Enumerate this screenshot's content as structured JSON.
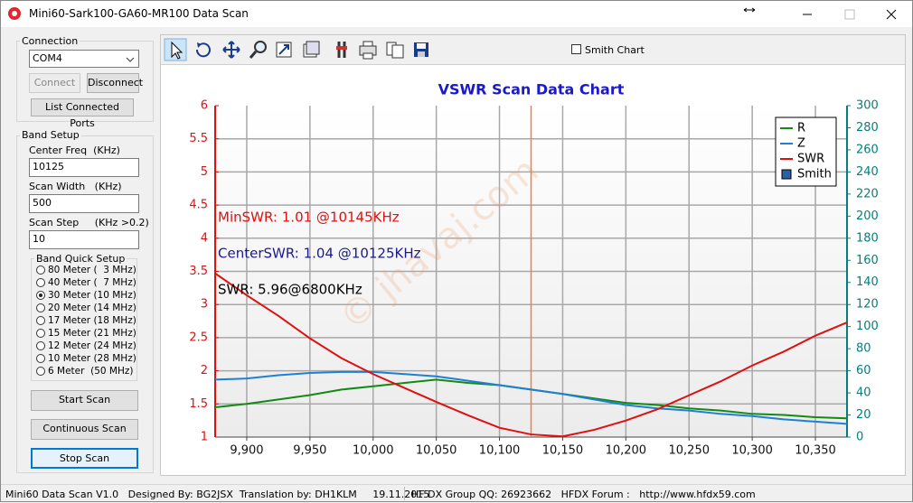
{
  "window": {
    "title": "Mini60-Sark100-GA60-MR100 Data Scan"
  },
  "connection": {
    "label": "Connection",
    "port": "COM4",
    "connect": "Connect",
    "disconnect": "Disconnect",
    "list_ports": "List Connected Ports"
  },
  "band_setup": {
    "label": "Band Setup",
    "center_freq_label": "Center Freq  (KHz)",
    "center_freq": "10125",
    "scan_width_label": "Scan Width   (KHz)",
    "scan_width": "500",
    "scan_step_label": "Scan Step     (KHz >0.2)",
    "scan_step": "10",
    "quick_setup_label": "Band Quick Setup",
    "quick_setup": [
      "80 Meter (  3 MHz)",
      "40 Meter (  7 MHz)",
      "30 Meter (10 MHz)",
      "20 Meter (14 MHz)",
      "17 Meter (18 MHz)",
      "15 Meter (21 MHz)",
      "12 Meter (24 MHz)",
      "10 Meter (28 MHz)",
      "6 Meter  (50 MHz)"
    ],
    "selected": 2,
    "start": "Start Scan",
    "continuous": "Continuous Scan",
    "stop": "Stop Scan"
  },
  "toolbar": {
    "smith_chart": "Smith Chart"
  },
  "status": {
    "left": "Mini60 Data Scan V1.0   Designed By: BG2JSX  Translation by: DH1KLM     19.11.2015",
    "right": "HF DX Group QQ: 26923662   HFDX Forum :   http://www.hfdx59.com"
  },
  "chart_data": {
    "type": "line",
    "title": "VSWR Scan Data Chart",
    "x": [
      9875,
      9900,
      9925,
      9950,
      9975,
      10000,
      10025,
      10050,
      10075,
      10100,
      10125,
      10150,
      10175,
      10200,
      10225,
      10250,
      10275,
      10300,
      10325,
      10350,
      10375
    ],
    "series": [
      {
        "name": "R",
        "color": "#138a13",
        "axis": "y2",
        "values": [
          27,
          30,
          34,
          38,
          43,
          46,
          49,
          52,
          49,
          47,
          43,
          39,
          35,
          31,
          29,
          26,
          24,
          21,
          20,
          18,
          17
        ]
      },
      {
        "name": "Z",
        "color": "#1e7fd8",
        "axis": "y2",
        "values": [
          52,
          53,
          56,
          58,
          59,
          59,
          57,
          55,
          51,
          47,
          43,
          39,
          34,
          29,
          26,
          24,
          21,
          19,
          16,
          14,
          12
        ]
      },
      {
        "name": "SWR",
        "color": "#e01010",
        "values": [
          3.47,
          3.14,
          2.83,
          2.49,
          2.19,
          1.95,
          1.74,
          1.53,
          1.33,
          1.14,
          1.04,
          1.01,
          1.11,
          1.25,
          1.42,
          1.63,
          1.84,
          2.08,
          2.29,
          2.53,
          2.73
        ]
      }
    ],
    "smith_legend": "Smith",
    "center_marker": 10125,
    "xlim": [
      9875,
      10375
    ],
    "xticks": [
      {
        "value": 9900,
        "label": "9,900"
      },
      {
        "value": 9950,
        "label": "9,950"
      },
      {
        "value": 10000,
        "label": "10,000"
      },
      {
        "value": 10050,
        "label": "10,050"
      },
      {
        "value": 10100,
        "label": "10,100"
      },
      {
        "value": 10150,
        "label": "10,150"
      },
      {
        "value": 10200,
        "label": "10,200"
      },
      {
        "value": 10250,
        "label": "10,250"
      },
      {
        "value": 10300,
        "label": "10,300"
      },
      {
        "value": 10350,
        "label": "10,350"
      }
    ],
    "ylim": [
      1,
      6
    ],
    "yticks": [
      1,
      1.5,
      2,
      2.5,
      3,
      3.5,
      4,
      4.5,
      5,
      5.5,
      6
    ],
    "y2lim": [
      0,
      300
    ],
    "y2ticks": [
      0,
      20,
      40,
      60,
      80,
      100,
      120,
      140,
      160,
      180,
      200,
      220,
      240,
      260,
      280,
      300
    ],
    "grid": true,
    "legend": "upper right",
    "annotations": [
      {
        "text": "MinSWR: 1.01 @10145KHz",
        "color": "#e01010"
      },
      {
        "text": "CenterSWR: 1.04 @10125KHz",
        "color": "#1a1a8c"
      },
      {
        "text": "SWR: 5.96@6800KHz",
        "color": "#000000"
      }
    ],
    "watermark": "© jhavaj.com"
  }
}
